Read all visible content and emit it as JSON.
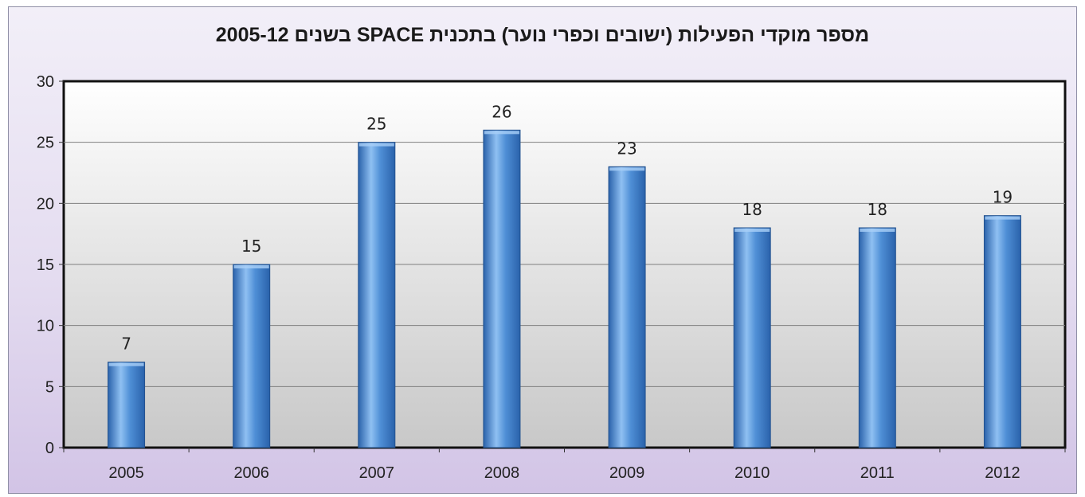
{
  "chart_data": {
    "type": "bar",
    "title": "מספר מוקדי הפעילות (ישובים וכפרי נוער) בתכנית  SPACE בשנים 2005-12",
    "categories": [
      "2005",
      "2006",
      "2007",
      "2008",
      "2009",
      "2010",
      "2011",
      "2012"
    ],
    "values": [
      7,
      15,
      25,
      26,
      23,
      18,
      18,
      19
    ],
    "data_labels": [
      "7",
      "15",
      "25",
      "26",
      "23",
      "18",
      "18",
      "19"
    ],
    "xlabel": "",
    "ylabel": "",
    "ylim": [
      0,
      30
    ],
    "yticks": [
      "0",
      "5",
      "10",
      "15",
      "20",
      "25",
      "30"
    ],
    "grid": true,
    "legend": "none",
    "colors": {
      "bar_light": "#8fc0f2",
      "bar_mid": "#4f8fd6",
      "bar_dark": "#2a62ab",
      "plot_bg_top": "#ffffff",
      "plot_bg_bottom": "#c8c8c8",
      "frame_top": "#f2eff8",
      "frame_bottom": "#d2c4e6"
    }
  }
}
